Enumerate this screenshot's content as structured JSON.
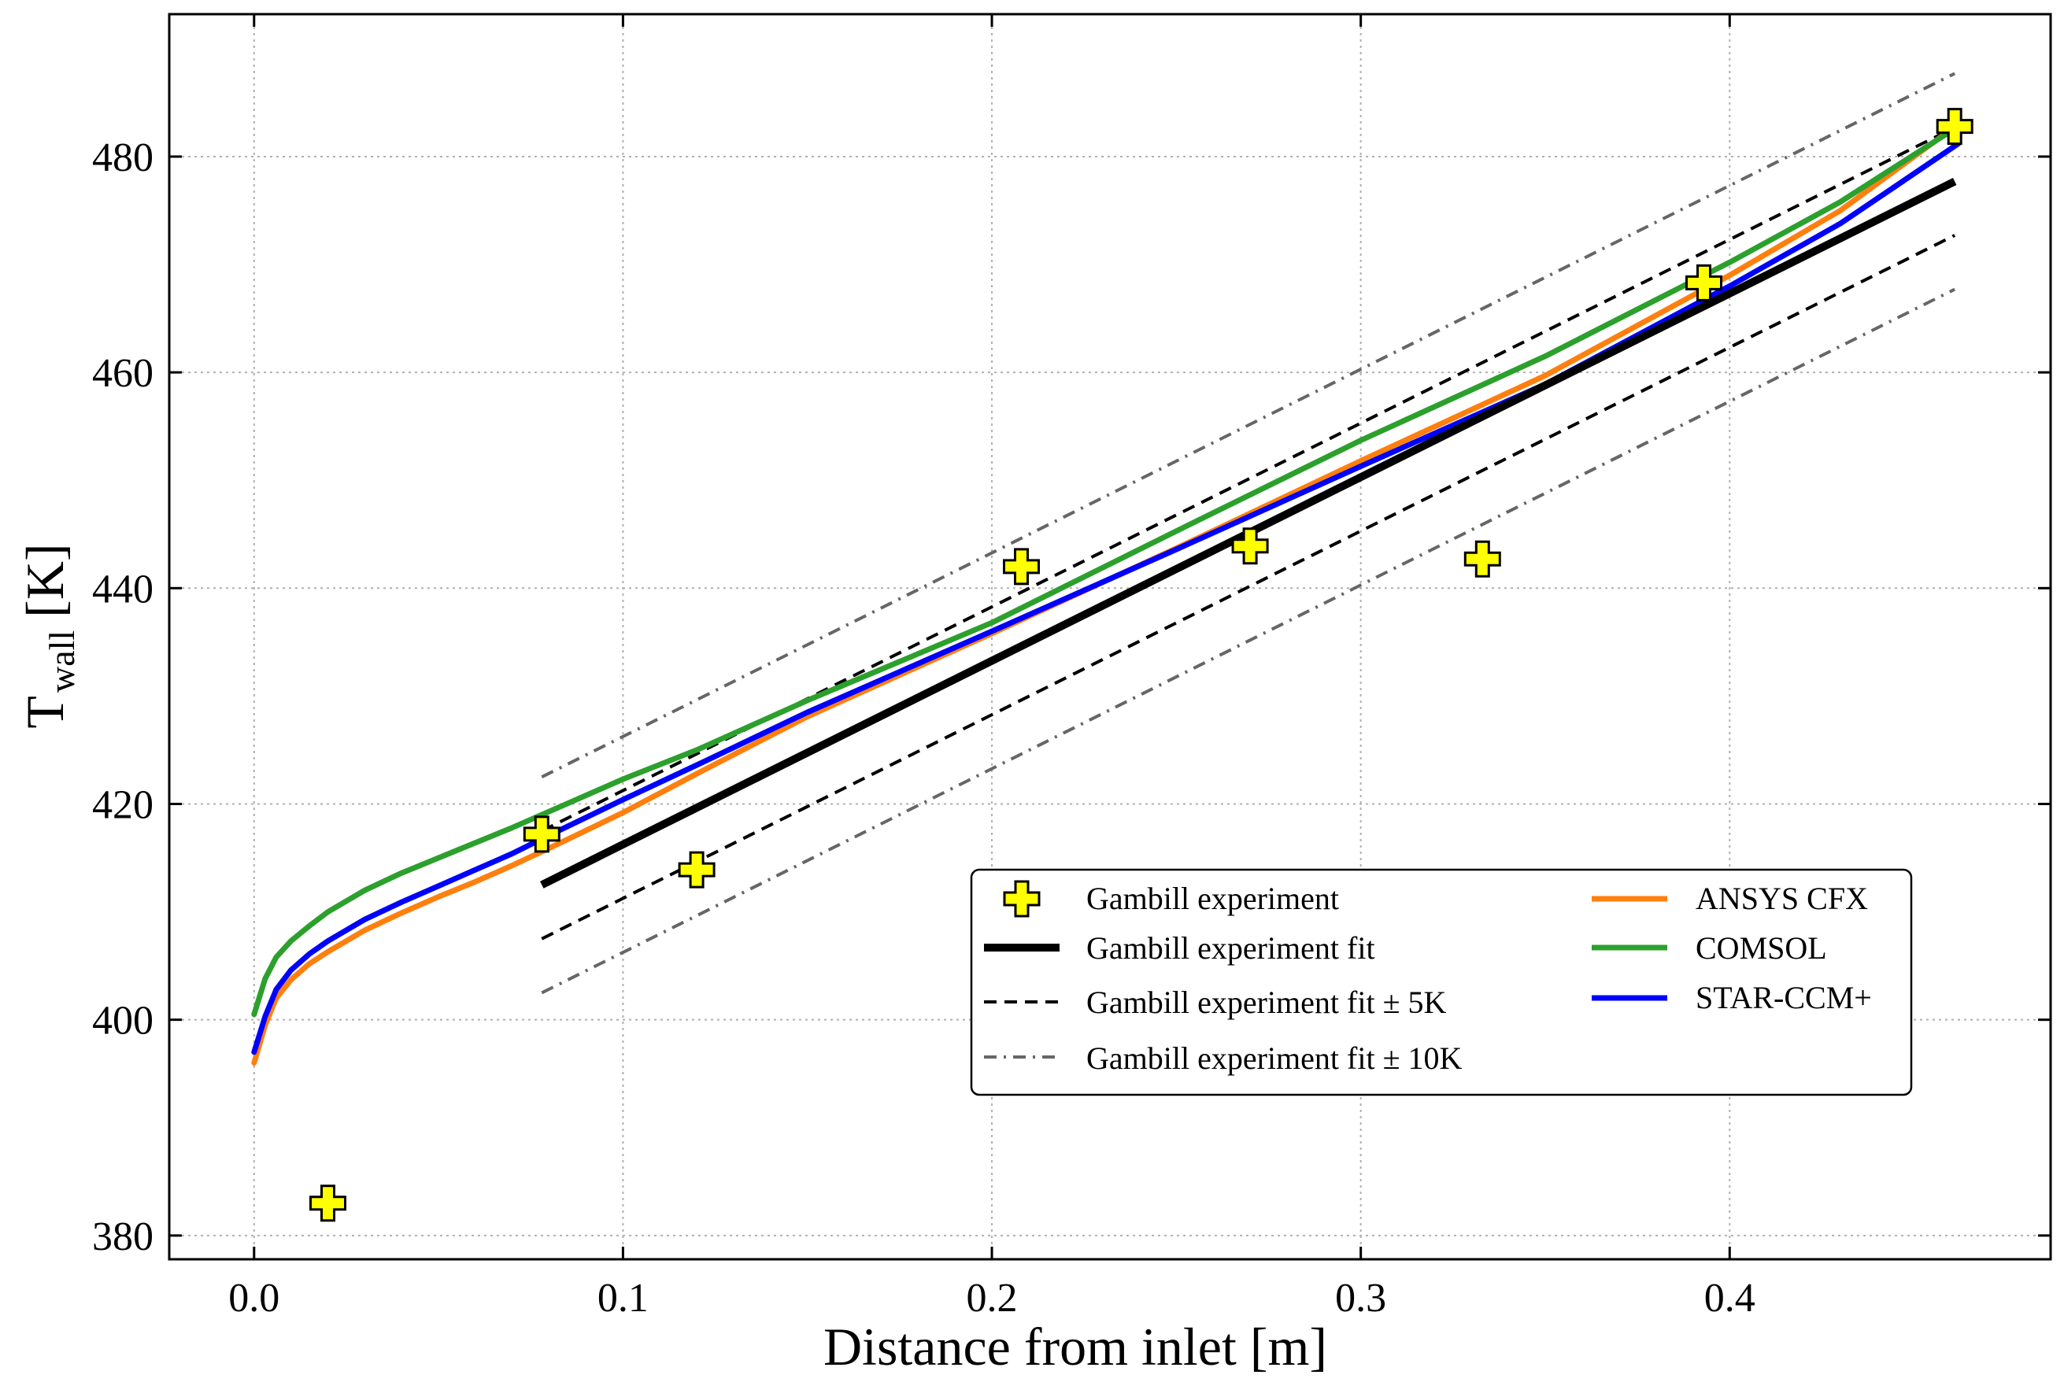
{
  "chart_data": {
    "type": "line",
    "title": "",
    "xlabel": "Distance from inlet [m]",
    "ylabel_main": "T",
    "ylabel_sub": "wall",
    "ylabel_unit": "[K]",
    "xlim": [
      -0.023,
      0.487
    ],
    "ylim": [
      377.8,
      493.2
    ],
    "xticks": [
      0.0,
      0.1,
      0.2,
      0.3,
      0.4
    ],
    "xtick_labels": [
      "0.0",
      "0.1",
      "0.2",
      "0.3",
      "0.4"
    ],
    "yticks": [
      380,
      400,
      420,
      440,
      460,
      480
    ],
    "ytick_labels": [
      "380",
      "400",
      "420",
      "440",
      "460",
      "480"
    ],
    "grid": true,
    "legend_position": "center-right",
    "experiment": {
      "name": "Gambill experiment",
      "marker": "plus",
      "color": "#ffff00",
      "x": [
        0.02,
        0.078,
        0.12,
        0.208,
        0.27,
        0.333,
        0.393,
        0.461
      ],
      "y": [
        383.0,
        417.2,
        413.9,
        442.0,
        443.9,
        442.7,
        468.3,
        482.8
      ]
    },
    "fit": {
      "name": "Gambill experiment fit",
      "color": "#000000",
      "x": [
        0.078,
        0.461
      ],
      "y": [
        412.5,
        477.7
      ]
    },
    "fit_band_5": {
      "name": "Gambill experiment fit ± 5K",
      "color": "#000000",
      "x": [
        0.078,
        0.461
      ],
      "upper": [
        417.5,
        482.7
      ],
      "lower": [
        407.5,
        472.7
      ]
    },
    "fit_band_10": {
      "name": "Gambill experiment fit ± 10K",
      "color": "#666666",
      "x": [
        0.078,
        0.461
      ],
      "upper": [
        422.5,
        487.7
      ],
      "lower": [
        402.5,
        467.7
      ]
    },
    "series": [
      {
        "name": "ANSYS CFX",
        "color": "#ff7f0e",
        "x": [
          0.0,
          0.003,
          0.006,
          0.01,
          0.015,
          0.02,
          0.03,
          0.04,
          0.05,
          0.06,
          0.07,
          0.08,
          0.1,
          0.12,
          0.15,
          0.2,
          0.25,
          0.3,
          0.35,
          0.4,
          0.43,
          0.462
        ],
        "y": [
          396.0,
          399.5,
          402.0,
          403.7,
          405.2,
          406.3,
          408.3,
          409.9,
          411.4,
          412.8,
          414.3,
          415.9,
          419.2,
          422.8,
          428.1,
          435.8,
          443.7,
          451.8,
          459.7,
          469.0,
          475.0,
          483.0
        ]
      },
      {
        "name": "COMSOL",
        "color": "#2ca02c",
        "x": [
          0.0,
          0.003,
          0.006,
          0.01,
          0.015,
          0.02,
          0.03,
          0.04,
          0.05,
          0.06,
          0.07,
          0.08,
          0.1,
          0.12,
          0.15,
          0.2,
          0.25,
          0.3,
          0.35,
          0.4,
          0.43,
          0.462
        ],
        "y": [
          400.5,
          403.8,
          405.8,
          407.3,
          408.7,
          410.0,
          412.0,
          413.6,
          415.0,
          416.4,
          417.8,
          419.3,
          422.3,
          425.0,
          429.6,
          436.8,
          445.3,
          453.7,
          461.5,
          470.2,
          475.8,
          482.8
        ]
      },
      {
        "name": "STAR-CCM+",
        "color": "#0000ff",
        "x": [
          0.0,
          0.003,
          0.006,
          0.01,
          0.015,
          0.02,
          0.03,
          0.04,
          0.05,
          0.06,
          0.07,
          0.08,
          0.1,
          0.12,
          0.15,
          0.2,
          0.25,
          0.3,
          0.35,
          0.4,
          0.43,
          0.462
        ],
        "y": [
          397.0,
          400.3,
          402.8,
          404.6,
          406.1,
          407.3,
          409.3,
          410.9,
          412.4,
          413.9,
          415.4,
          417.1,
          420.4,
          423.6,
          428.5,
          436.0,
          443.6,
          451.3,
          458.9,
          468.0,
          473.8,
          481.2
        ]
      }
    ]
  }
}
